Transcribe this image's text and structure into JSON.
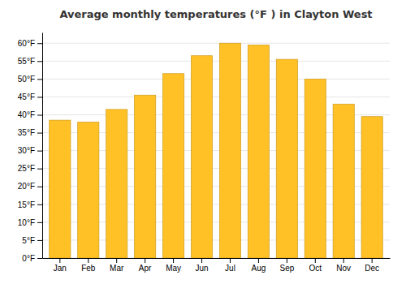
{
  "chart_data": {
    "type": "bar",
    "title": "Average monthly temperatures (°F ) in Clayton West",
    "categories": [
      "Jan",
      "Feb",
      "Mar",
      "Apr",
      "May",
      "Jun",
      "Jul",
      "Aug",
      "Sep",
      "Oct",
      "Nov",
      "Dec"
    ],
    "values": [
      38.5,
      38.0,
      41.5,
      45.5,
      51.5,
      56.5,
      60.0,
      59.5,
      55.5,
      50.0,
      43.0,
      39.5
    ],
    "color": "#FFC125",
    "ylim": [
      0,
      63
    ],
    "yticks": [
      {
        "value": 0,
        "label": "0°F"
      },
      {
        "value": 5,
        "label": "5°F"
      },
      {
        "value": 10,
        "label": "10°F"
      },
      {
        "value": 15,
        "label": "15°F"
      },
      {
        "value": 20,
        "label": "20°F"
      },
      {
        "value": 25,
        "label": "25°F"
      },
      {
        "value": 30,
        "label": "30°F"
      },
      {
        "value": 35,
        "label": "35°F"
      },
      {
        "value": 40,
        "label": "40°F"
      },
      {
        "value": 45,
        "label": "45°F"
      },
      {
        "value": 50,
        "label": "50°F"
      },
      {
        "value": 55,
        "label": "55°F"
      },
      {
        "value": 60,
        "label": "60°F"
      }
    ],
    "grid": true
  }
}
